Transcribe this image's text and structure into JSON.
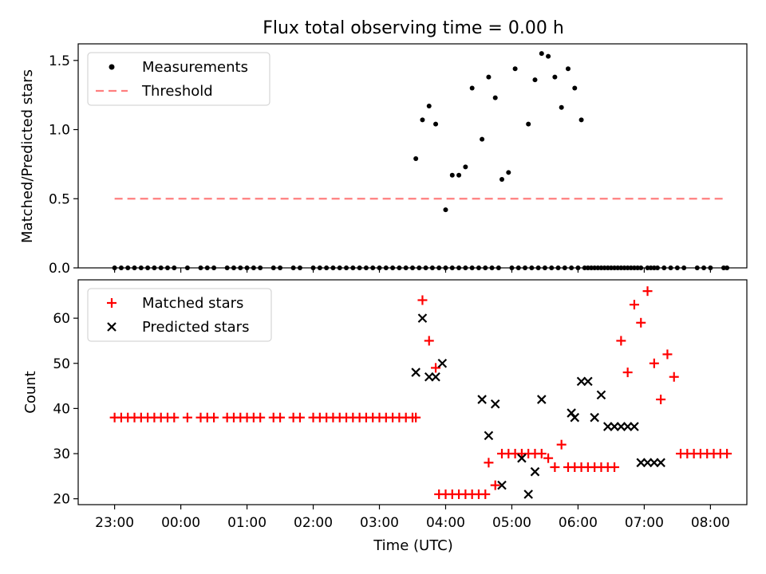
{
  "chart_data": {
    "title": "Flux total observing time = 0.00 h",
    "xlabel": "Time (UTC)",
    "x_tick_labels": [
      "23:00",
      "00:00",
      "01:00",
      "02:00",
      "03:00",
      "04:00",
      "05:00",
      "06:00",
      "07:00",
      "08:00"
    ],
    "x_range_hours": [
      -0.55,
      9.55
    ],
    "panels": [
      {
        "type": "scatter",
        "ylabel": "Matched/Predicted stars",
        "ylim": [
          0,
          1.62
        ],
        "yticks": [
          0.0,
          0.5,
          1.0,
          1.5
        ],
        "y_tick_labels": [
          "0.0",
          "0.5",
          "1.0",
          "1.5"
        ],
        "legend_position": "top-left",
        "legend": [
          {
            "label": "Measurements",
            "marker": "dot",
            "color": "#000000"
          },
          {
            "label": "Threshold",
            "marker": "dashed-line",
            "color": "#ff7f7f"
          }
        ],
        "threshold": {
          "value": 0.5,
          "x": [
            0.0,
            9.25
          ]
        },
        "series": [
          {
            "name": "Measurements",
            "marker": "dot",
            "color": "#000000",
            "x": [
              0.0,
              0.1,
              0.2,
              0.3,
              0.4,
              0.5,
              0.6,
              0.7,
              0.8,
              0.9,
              1.1,
              1.3,
              1.4,
              1.5,
              1.7,
              1.8,
              1.9,
              2.0,
              2.1,
              2.2,
              2.4,
              2.5,
              2.7,
              2.8,
              3.0,
              3.1,
              3.2,
              3.3,
              3.4,
              3.5,
              3.6,
              3.7,
              3.8,
              3.9,
              4.0,
              4.1,
              4.2,
              4.3,
              4.4,
              4.5,
              4.6,
              4.7,
              4.8,
              4.9,
              5.0,
              5.1,
              5.2,
              5.3,
              5.4,
              5.5,
              5.6,
              5.7,
              5.8,
              6.0,
              6.1,
              6.2,
              6.3,
              6.4,
              6.5,
              6.6,
              6.7,
              6.8,
              6.9,
              7.0,
              7.1,
              7.2,
              7.3,
              7.4,
              7.5,
              7.6,
              7.7,
              7.8,
              7.9,
              8.1,
              8.2,
              8.3,
              8.4,
              8.5,
              8.6,
              8.8,
              8.9,
              9.0,
              9.2,
              9.25
            ],
            "y": [
              0,
              0,
              0,
              0,
              0,
              0,
              0,
              0,
              0,
              0,
              0,
              0,
              0,
              0,
              0,
              0,
              0,
              0,
              0,
              0,
              0,
              0,
              0,
              0,
              0,
              0,
              0,
              0,
              0,
              0,
              0,
              0,
              0,
              0,
              0,
              0,
              0,
              0,
              0,
              0,
              0,
              0,
              0,
              0,
              0,
              0,
              0,
              0,
              0,
              0,
              0,
              0,
              0,
              0,
              0,
              0,
              0,
              0,
              0,
              0,
              0,
              0,
              0,
              0,
              0,
              0,
              0,
              0,
              0,
              0,
              0,
              0,
              0,
              0,
              0,
              0,
              0,
              0,
              0,
              0,
              0,
              0,
              0,
              0
            ]
          },
          {
            "name": "Measurements",
            "marker": "dot",
            "color": "#000000",
            "x": [
              4.55,
              4.65,
              4.75,
              4.85,
              5.0,
              5.1,
              5.2,
              5.3,
              5.4,
              5.55,
              5.65,
              5.75,
              5.85,
              5.95,
              6.05,
              6.25,
              6.35,
              6.45,
              6.55,
              6.65,
              6.75,
              6.85,
              6.95,
              7.05,
              7.15,
              7.25,
              7.35,
              7.45,
              7.55,
              7.65,
              7.75,
              7.85,
              7.95,
              8.05,
              8.15
            ],
            "y": [
              0.79,
              1.07,
              1.17,
              1.04,
              0.42,
              0.67,
              0.67,
              0.73,
              1.3,
              0.93,
              1.38,
              1.23,
              0.64,
              0.69,
              1.44,
              1.04,
              1.36,
              1.55,
              1.53,
              1.38,
              1.16,
              1.44,
              1.3,
              1.07,
              0,
              0,
              0,
              0,
              0,
              0,
              0,
              0,
              0,
              0,
              0
            ]
          }
        ]
      },
      {
        "type": "scatter",
        "ylabel": "Count",
        "ylim": [
          18.7,
          68.5
        ],
        "yticks": [
          20,
          30,
          40,
          50,
          60
        ],
        "y_tick_labels": [
          "20",
          "30",
          "40",
          "50",
          "60"
        ],
        "legend_position": "top-left",
        "legend": [
          {
            "label": "Matched stars",
            "marker": "plus",
            "color": "#ff0000"
          },
          {
            "label": "Predicted stars",
            "marker": "x",
            "color": "#000000"
          }
        ],
        "series": [
          {
            "name": "Matched stars",
            "marker": "plus",
            "color": "#ff0000",
            "x": [
              0.0,
              0.1,
              0.2,
              0.3,
              0.4,
              0.5,
              0.6,
              0.7,
              0.8,
              0.9,
              1.1,
              1.3,
              1.4,
              1.5,
              1.7,
              1.8,
              1.9,
              2.0,
              2.1,
              2.2,
              2.4,
              2.5,
              2.7,
              2.8,
              3.0,
              3.1,
              3.2,
              3.3,
              3.4,
              3.5,
              3.6,
              3.7,
              3.8,
              3.9,
              4.0,
              4.1,
              4.2,
              4.3,
              4.4,
              4.5,
              4.55,
              4.65,
              4.75,
              4.85,
              4.9,
              5.0,
              5.1,
              5.2,
              5.3,
              5.4,
              5.5,
              5.6,
              5.65,
              5.75,
              5.85,
              5.95,
              6.05,
              6.15,
              6.25,
              6.35,
              6.45,
              6.55,
              6.65,
              6.75,
              6.85,
              6.95,
              7.05,
              7.15,
              7.25,
              7.35,
              7.45,
              7.55,
              7.65,
              7.75,
              7.85,
              7.95,
              8.05,
              8.15,
              8.25,
              8.35,
              8.45,
              8.55,
              8.65,
              8.75,
              8.85,
              8.95,
              9.05,
              9.15,
              9.25
            ],
            "y": [
              38,
              38,
              38,
              38,
              38,
              38,
              38,
              38,
              38,
              38,
              38,
              38,
              38,
              38,
              38,
              38,
              38,
              38,
              38,
              38,
              38,
              38,
              38,
              38,
              38,
              38,
              38,
              38,
              38,
              38,
              38,
              38,
              38,
              38,
              38,
              38,
              38,
              38,
              38,
              38,
              38,
              64,
              55,
              49,
              21,
              21,
              21,
              21,
              21,
              21,
              21,
              21,
              28,
              23,
              30,
              30,
              30,
              30,
              30,
              30,
              30,
              29,
              27,
              32,
              27,
              27,
              27,
              27,
              27,
              27,
              27,
              27,
              55,
              48,
              63,
              59,
              66,
              50,
              42,
              52,
              47,
              30,
              30,
              30,
              30,
              30,
              30,
              30,
              30
            ]
          },
          {
            "name": "Predicted stars",
            "marker": "x",
            "color": "#000000",
            "x": [
              4.55,
              4.65,
              4.75,
              4.85,
              4.95,
              5.55,
              5.65,
              5.75,
              5.85,
              6.15,
              6.25,
              6.35,
              6.45,
              6.9,
              6.95,
              7.05,
              7.15,
              7.25,
              7.35,
              7.45,
              7.55,
              7.65,
              7.75,
              7.85,
              7.95,
              8.05,
              8.15,
              8.25
            ],
            "y": [
              48,
              60,
              47,
              47,
              50,
              42,
              34,
              41,
              23,
              29,
              21,
              26,
              42,
              39,
              38,
              46,
              46,
              38,
              43,
              36,
              36,
              36,
              36,
              36,
              28,
              28,
              28,
              28
            ]
          }
        ]
      }
    ]
  }
}
